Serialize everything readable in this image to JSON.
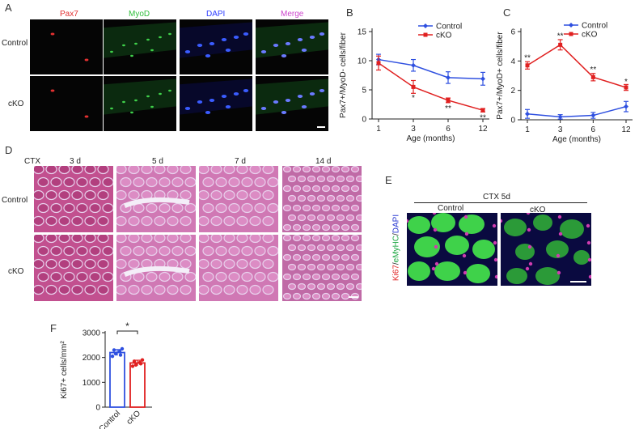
{
  "panels": {
    "a": "A",
    "b": "B",
    "c": "C",
    "d": "D",
    "e": "E",
    "f": "F"
  },
  "panel_a": {
    "channels": [
      {
        "label": "Pax7",
        "color": "#e23030"
      },
      {
        "label": "MyoD",
        "color": "#2fbf3a"
      },
      {
        "label": "DAPI",
        "color": "#2b3bff"
      },
      {
        "label": "Merge",
        "color": "#cc44cc"
      }
    ],
    "rows": [
      "Control",
      "cKO"
    ]
  },
  "panel_d": {
    "ctx": "CTX",
    "timepoints": [
      "3 d",
      "5 d",
      "7 d",
      "14 d"
    ],
    "rows": [
      "Control",
      "cKO"
    ]
  },
  "panel_e": {
    "header": "CTX  5d",
    "cols": [
      "Control",
      "cKO"
    ],
    "ylabel_parts": [
      {
        "text": "Ki67",
        "color": "#e02020"
      },
      {
        "text": "/",
        "color": "#222222"
      },
      {
        "text": "eMyHC",
        "color": "#1aa640"
      },
      {
        "text": "/",
        "color": "#222222"
      },
      {
        "text": "DAPI",
        "color": "#2030d0"
      }
    ]
  },
  "chart_data": [
    {
      "id": "B",
      "type": "line",
      "x": [
        "1",
        "3",
        "6",
        "12"
      ],
      "xlabel": "Age (months)",
      "ylabel": "Pax7+/MyoD- cells/fiber",
      "ylim": [
        0,
        15
      ],
      "yticks": [
        0,
        5,
        10,
        15
      ],
      "legend": "top-right",
      "series": [
        {
          "name": "Control",
          "color": "#2f50e0",
          "values": [
            10.2,
            9.2,
            7.1,
            6.9
          ],
          "err": [
            0.9,
            1.0,
            1.0,
            1.1
          ]
        },
        {
          "name": "cKO",
          "color": "#e02020",
          "values": [
            9.6,
            5.5,
            3.2,
            1.5
          ],
          "err": [
            1.2,
            1.1,
            0.4,
            0.3
          ]
        }
      ],
      "annotations": [
        {
          "x": "3",
          "y": 3.6,
          "text": "*"
        },
        {
          "x": "6",
          "y": 1.8,
          "text": "**"
        },
        {
          "x": "12",
          "y": 0.2,
          "text": "**"
        }
      ]
    },
    {
      "id": "C",
      "type": "line",
      "x": [
        "1",
        "3",
        "6",
        "12"
      ],
      "xlabel": "Age (months)",
      "ylabel": "Pax7+/MyoD+ cells/fiber",
      "ylim": [
        0,
        6
      ],
      "yticks": [
        0,
        2,
        4,
        6
      ],
      "legend": "top-right",
      "series": [
        {
          "name": "Control",
          "color": "#2f50e0",
          "values": [
            0.4,
            0.2,
            0.3,
            0.9
          ],
          "err": [
            0.3,
            0.15,
            0.2,
            0.35
          ]
        },
        {
          "name": "cKO",
          "color": "#e02020",
          "values": [
            3.7,
            5.1,
            2.9,
            2.2
          ],
          "err": [
            0.25,
            0.35,
            0.25,
            0.2
          ]
        }
      ],
      "annotations": [
        {
          "x": "1",
          "y": 4.2,
          "text": "**"
        },
        {
          "x": "3",
          "y": 5.7,
          "text": "**"
        },
        {
          "x": "6",
          "y": 3.4,
          "text": "**"
        },
        {
          "x": "12",
          "y": 2.6,
          "text": "*"
        }
      ]
    },
    {
      "id": "F",
      "type": "bar",
      "categories": [
        "Control",
        "cKO"
      ],
      "ylabel": "Ki67+ cells/mm²",
      "ylim": [
        0,
        3000
      ],
      "yticks": [
        0,
        1000,
        2000,
        3000
      ],
      "colors": [
        "#2f50e0",
        "#e02020"
      ],
      "values": [
        2200,
        1780
      ],
      "err": [
        120,
        110
      ],
      "points": [
        [
          2050,
          2150,
          2250,
          2350,
          2300,
          2100
        ],
        [
          1650,
          1700,
          1800,
          1900,
          1850,
          1750
        ]
      ],
      "significance": "*"
    }
  ]
}
